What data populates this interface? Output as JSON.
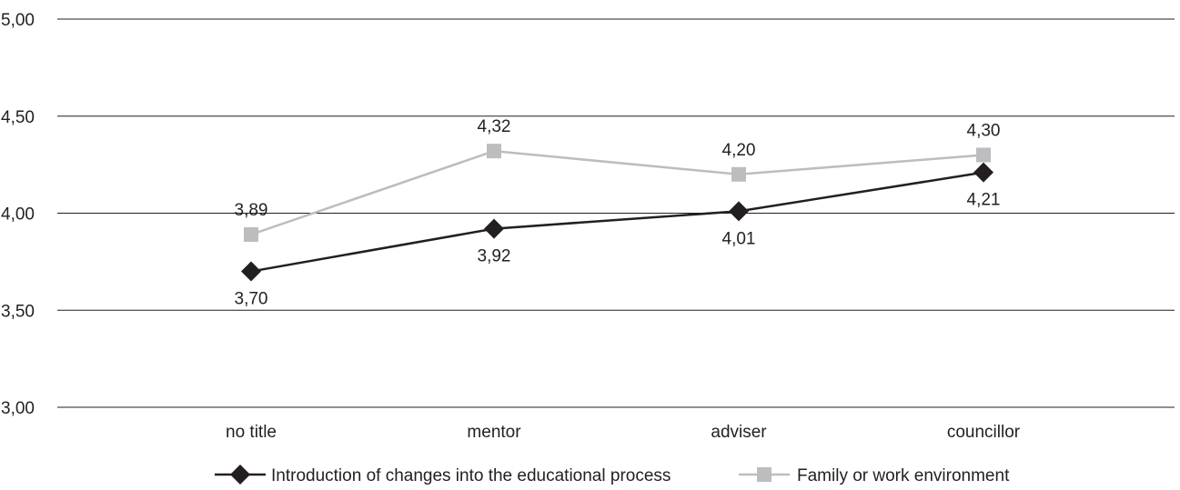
{
  "chart_data": {
    "type": "line",
    "categories": [
      "no title",
      "mentor",
      "adviser",
      "councillor"
    ],
    "y_tick_labels": [
      "5,00",
      "4,50",
      "4,00",
      "3,50",
      "3,00"
    ],
    "y_ticks": [
      5.0,
      4.5,
      4.0,
      3.5,
      3.0
    ],
    "ylim": [
      3.0,
      5.0
    ],
    "grid": true,
    "legend_position": "bottom",
    "series": [
      {
        "name": "Introduction of changes into the educational process",
        "values": [
          3.7,
          3.92,
          4.01,
          4.21
        ],
        "labels": [
          "3,70",
          "3,92",
          "4,01",
          "4,21"
        ],
        "label_side": [
          "below",
          "below",
          "below",
          "below"
        ],
        "color": "#231f20",
        "marker": "diamond"
      },
      {
        "name": "Family or work environment",
        "values": [
          3.89,
          4.32,
          4.2,
          4.3
        ],
        "labels": [
          "3,89",
          "4,32",
          "4,20",
          "4,30"
        ],
        "label_side": [
          "above",
          "above",
          "above",
          "above"
        ],
        "color": "#bcbdbf",
        "marker": "square"
      }
    ]
  }
}
